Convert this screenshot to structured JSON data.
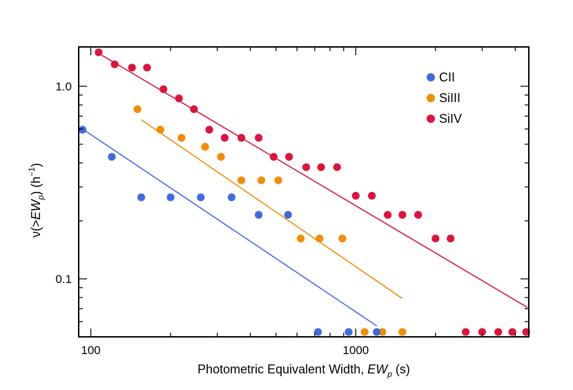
{
  "chart_data": {
    "type": "scatter",
    "title": "",
    "xlabel": "Photometric Equivalent Width, EW_p (s)",
    "xlabel_main": "Photometric Equivalent Width, ",
    "xlabel_var": "EW",
    "xlabel_sub": "p",
    "xlabel_unit": " (s)",
    "ylabel": "ν(>EW_p) (h^-1)",
    "ylabel_pre": "ν(>",
    "ylabel_var": "EW",
    "ylabel_sub": "p",
    "ylabel_mid": ") (h",
    "ylabel_sup": "−1",
    "ylabel_post": ")",
    "xscale": "log",
    "yscale": "log",
    "xlim": [
      90,
      4500
    ],
    "ylim": [
      0.05,
      1.6
    ],
    "xticks": [
      {
        "value": 100,
        "label": "100"
      },
      {
        "value": 1000,
        "label": "1000"
      }
    ],
    "yticks": [
      {
        "value": 0.1,
        "label": "0.1"
      },
      {
        "value": 1.0,
        "label": "1.0"
      }
    ],
    "legend_position": "top-right",
    "series": [
      {
        "name": "CII",
        "color": "#4169E1",
        "points": [
          [
            93,
            0.595
          ],
          [
            120,
            0.43
          ],
          [
            155,
            0.265
          ],
          [
            200,
            0.265
          ],
          [
            260,
            0.265
          ],
          [
            340,
            0.265
          ],
          [
            430,
            0.215
          ],
          [
            555,
            0.215
          ],
          [
            720,
            0.053
          ],
          [
            940,
            0.053
          ],
          [
            1200,
            0.053
          ]
        ],
        "fit": [
          [
            93,
            0.6
          ],
          [
            1200,
            0.057
          ]
        ]
      },
      {
        "name": "SiIII",
        "color": "#F28C00",
        "points": [
          [
            150,
            0.76
          ],
          [
            183,
            0.595
          ],
          [
            220,
            0.54
          ],
          [
            270,
            0.485
          ],
          [
            310,
            0.43
          ],
          [
            370,
            0.325
          ],
          [
            440,
            0.325
          ],
          [
            510,
            0.325
          ],
          [
            620,
            0.162
          ],
          [
            730,
            0.162
          ],
          [
            890,
            0.162
          ],
          [
            1080,
            0.053
          ],
          [
            1260,
            0.053
          ],
          [
            1500,
            0.053
          ]
        ],
        "fit": [
          [
            155,
            0.67
          ],
          [
            1500,
            0.079
          ]
        ]
      },
      {
        "name": "SiIV",
        "color": "#DC143C",
        "points": [
          [
            107,
            1.5
          ],
          [
            123,
            1.3
          ],
          [
            143,
            1.25
          ],
          [
            163,
            1.25
          ],
          [
            188,
            0.965
          ],
          [
            215,
            0.865
          ],
          [
            245,
            0.76
          ],
          [
            280,
            0.595
          ],
          [
            320,
            0.54
          ],
          [
            370,
            0.54
          ],
          [
            430,
            0.54
          ],
          [
            490,
            0.43
          ],
          [
            560,
            0.43
          ],
          [
            650,
            0.38
          ],
          [
            740,
            0.38
          ],
          [
            850,
            0.38
          ],
          [
            1000,
            0.27
          ],
          [
            1150,
            0.27
          ],
          [
            1320,
            0.215
          ],
          [
            1500,
            0.215
          ],
          [
            1720,
            0.215
          ],
          [
            2000,
            0.162
          ],
          [
            2280,
            0.162
          ],
          [
            2600,
            0.053
          ],
          [
            3000,
            0.053
          ],
          [
            3450,
            0.053
          ],
          [
            3900,
            0.053
          ],
          [
            4400,
            0.053
          ]
        ],
        "fit": [
          [
            110,
            1.45
          ],
          [
            4450,
            0.071
          ]
        ]
      }
    ]
  }
}
